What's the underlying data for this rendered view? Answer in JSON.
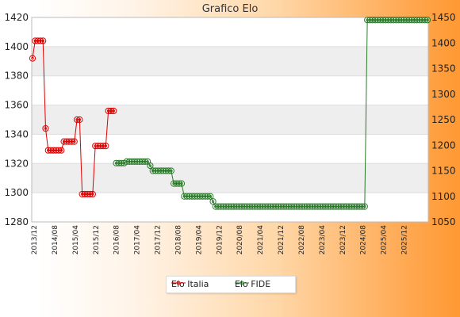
{
  "chart_data": {
    "type": "line",
    "title": "Grafico Elo",
    "y_left": {
      "ylim": [
        1280,
        1420
      ],
      "ticks": [
        1280,
        1300,
        1320,
        1340,
        1360,
        1380,
        1400,
        1420
      ]
    },
    "y_right": {
      "ylim": [
        1050,
        1450
      ],
      "ticks": [
        1050,
        1100,
        1150,
        1200,
        1250,
        1300,
        1350,
        1400,
        1450
      ]
    },
    "x_tick_labels": [
      "2013/12",
      "2014/08",
      "2015/04",
      "2015/12",
      "2016/08",
      "2017/04",
      "2017/12",
      "2018/08",
      "2019/04",
      "2019/12",
      "2020/08",
      "2021/04",
      "2021/12",
      "2022/08",
      "2023/04",
      "2023/12",
      "2024/08",
      "2025/04",
      "2025/12"
    ],
    "grid": true,
    "legend": "bottom-center",
    "series": [
      {
        "name": "Elo Italia",
        "axis": "left",
        "color": "#dd0000",
        "points": [
          [
            0,
            1392
          ],
          [
            1,
            1404
          ],
          [
            2,
            1404
          ],
          [
            3,
            1404
          ],
          [
            4,
            1404
          ],
          [
            5,
            1344
          ],
          [
            6,
            1329
          ],
          [
            7,
            1329
          ],
          [
            8,
            1329
          ],
          [
            9,
            1329
          ],
          [
            10,
            1329
          ],
          [
            11,
            1329
          ],
          [
            12,
            1335
          ],
          [
            13,
            1335
          ],
          [
            14,
            1335
          ],
          [
            15,
            1335
          ],
          [
            16,
            1335
          ],
          [
            17,
            1350
          ],
          [
            18,
            1350
          ],
          [
            19,
            1299
          ],
          [
            20,
            1299
          ],
          [
            21,
            1299
          ],
          [
            22,
            1299
          ],
          [
            23,
            1299
          ],
          [
            24,
            1332
          ],
          [
            25,
            1332
          ],
          [
            26,
            1332
          ],
          [
            27,
            1332
          ],
          [
            28,
            1332
          ],
          [
            29,
            1356
          ],
          [
            30,
            1356
          ],
          [
            31,
            1356
          ]
        ]
      },
      {
        "name": "Elo FIDE",
        "axis": "right",
        "color": "#2a7a2a",
        "points": [
          [
            32,
            1165
          ],
          [
            33,
            1165
          ],
          [
            34,
            1165
          ],
          [
            35,
            1165
          ],
          [
            36,
            1168
          ],
          [
            37,
            1168
          ],
          [
            38,
            1168
          ],
          [
            39,
            1168
          ],
          [
            40,
            1168
          ],
          [
            41,
            1168
          ],
          [
            42,
            1168
          ],
          [
            43,
            1168
          ],
          [
            44,
            1168
          ],
          [
            45,
            1160
          ],
          [
            46,
            1150
          ],
          [
            47,
            1150
          ],
          [
            48,
            1150
          ],
          [
            49,
            1150
          ],
          [
            50,
            1150
          ],
          [
            51,
            1150
          ],
          [
            52,
            1150
          ],
          [
            53,
            1150
          ],
          [
            54,
            1125
          ],
          [
            55,
            1125
          ],
          [
            56,
            1125
          ],
          [
            57,
            1125
          ],
          [
            58,
            1100
          ],
          [
            59,
            1100
          ],
          [
            60,
            1100
          ],
          [
            61,
            1100
          ],
          [
            62,
            1100
          ],
          [
            63,
            1100
          ],
          [
            64,
            1100
          ],
          [
            65,
            1100
          ],
          [
            66,
            1100
          ],
          [
            67,
            1100
          ],
          [
            68,
            1100
          ],
          [
            69,
            1090
          ],
          [
            70,
            1080
          ],
          [
            71,
            1080
          ],
          [
            72,
            1080
          ],
          [
            73,
            1080
          ],
          [
            74,
            1080
          ],
          [
            75,
            1080
          ],
          [
            76,
            1080
          ],
          [
            77,
            1080
          ],
          [
            78,
            1080
          ],
          [
            79,
            1080
          ],
          [
            80,
            1080
          ],
          [
            81,
            1080
          ],
          [
            82,
            1080
          ],
          [
            83,
            1080
          ],
          [
            84,
            1080
          ],
          [
            85,
            1080
          ],
          [
            86,
            1080
          ],
          [
            87,
            1080
          ],
          [
            88,
            1080
          ],
          [
            89,
            1080
          ],
          [
            90,
            1080
          ],
          [
            91,
            1080
          ],
          [
            92,
            1080
          ],
          [
            93,
            1080
          ],
          [
            94,
            1080
          ],
          [
            95,
            1080
          ],
          [
            96,
            1080
          ],
          [
            97,
            1080
          ],
          [
            98,
            1080
          ],
          [
            99,
            1080
          ],
          [
            100,
            1080
          ],
          [
            101,
            1080
          ],
          [
            102,
            1080
          ],
          [
            103,
            1080
          ],
          [
            104,
            1080
          ],
          [
            105,
            1080
          ],
          [
            106,
            1080
          ],
          [
            107,
            1080
          ],
          [
            108,
            1080
          ],
          [
            109,
            1080
          ],
          [
            110,
            1080
          ],
          [
            111,
            1080
          ],
          [
            112,
            1080
          ],
          [
            113,
            1080
          ],
          [
            114,
            1080
          ],
          [
            115,
            1080
          ],
          [
            116,
            1080
          ],
          [
            117,
            1080
          ],
          [
            118,
            1080
          ],
          [
            119,
            1080
          ],
          [
            120,
            1080
          ],
          [
            121,
            1080
          ],
          [
            122,
            1080
          ],
          [
            123,
            1080
          ],
          [
            124,
            1080
          ],
          [
            125,
            1080
          ],
          [
            126,
            1080
          ],
          [
            127,
            1080
          ],
          [
            128,
            1445
          ],
          [
            129,
            1445
          ],
          [
            130,
            1445
          ],
          [
            131,
            1445
          ],
          [
            132,
            1445
          ],
          [
            133,
            1445
          ],
          [
            134,
            1445
          ],
          [
            135,
            1445
          ],
          [
            136,
            1445
          ],
          [
            137,
            1445
          ],
          [
            138,
            1445
          ],
          [
            139,
            1445
          ],
          [
            140,
            1445
          ],
          [
            141,
            1445
          ],
          [
            142,
            1445
          ],
          [
            143,
            1445
          ],
          [
            144,
            1445
          ],
          [
            145,
            1445
          ],
          [
            146,
            1445
          ],
          [
            147,
            1445
          ],
          [
            148,
            1445
          ],
          [
            149,
            1445
          ],
          [
            150,
            1445
          ],
          [
            151,
            1445
          ]
        ]
      }
    ]
  }
}
